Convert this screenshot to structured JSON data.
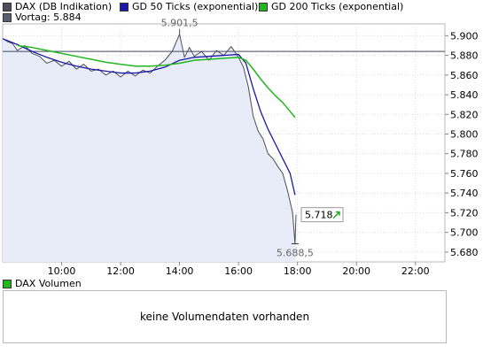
{
  "legend": {
    "items": [
      {
        "label": "DAX (DB Indikation)",
        "color": "#4a4e5a"
      },
      {
        "label": "GD 50 Ticks (exponential)",
        "color": "#1a1aa6"
      },
      {
        "label": "GD 200 Ticks (exponential)",
        "color": "#22b622"
      }
    ],
    "prev_close": {
      "label": "Vortag: 5.884",
      "color": "#5a6070"
    }
  },
  "volume": {
    "legend_label": "DAX Volumen",
    "legend_color": "#22b622",
    "empty_message": "keine Volumendaten vorhanden"
  },
  "chart_data": {
    "type": "line",
    "xlabel": "",
    "ylabel": "",
    "x_ticks": [
      "10:00",
      "12:00",
      "14:00",
      "16:00",
      "18:00",
      "20:00",
      "22:00"
    ],
    "y_ticks": [
      "5.680",
      "5.700",
      "5.720",
      "5.740",
      "5.760",
      "5.780",
      "5.800",
      "5.820",
      "5.840",
      "5.860",
      "5.880",
      "5.900"
    ],
    "ylim": [
      5670,
      5912
    ],
    "xlim": [
      "08:00",
      "23:00"
    ],
    "grid": true,
    "annotations": [
      {
        "text": "5.901,5",
        "time": "14:00",
        "value": 5901.5
      },
      {
        "text": "5.688,5",
        "time": "17:55",
        "value": 5688.5
      },
      {
        "text": "5.718",
        "time": "17:57",
        "value": 5718,
        "arrow": "up-right",
        "arrow_color": "#22aa22"
      }
    ],
    "reference_line": {
      "name": "Vortag",
      "value": 5884
    },
    "series": [
      {
        "name": "DAX (DB Indikation)",
        "color": "#4a4e5a",
        "x": [
          "08:00",
          "08:10",
          "08:20",
          "08:30",
          "08:45",
          "09:00",
          "09:15",
          "09:30",
          "09:45",
          "10:00",
          "10:15",
          "10:30",
          "10:45",
          "11:00",
          "11:15",
          "11:30",
          "11:45",
          "12:00",
          "12:15",
          "12:30",
          "12:45",
          "13:00",
          "13:15",
          "13:30",
          "13:45",
          "14:00",
          "14:10",
          "14:20",
          "14:30",
          "14:45",
          "15:00",
          "15:15",
          "15:30",
          "15:45",
          "16:00",
          "16:10",
          "16:20",
          "16:30",
          "16:40",
          "16:50",
          "17:00",
          "17:10",
          "17:20",
          "17:30",
          "17:40",
          "17:50",
          "17:55",
          "17:57"
        ],
        "values": [
          5897,
          5894,
          5892,
          5885,
          5890,
          5882,
          5879,
          5872,
          5875,
          5869,
          5874,
          5866,
          5871,
          5864,
          5866,
          5860,
          5864,
          5858,
          5864,
          5859,
          5865,
          5862,
          5869,
          5875,
          5884,
          5901.5,
          5878,
          5888,
          5879,
          5884,
          5875,
          5885,
          5880,
          5889,
          5878,
          5868,
          5848,
          5818,
          5803,
          5795,
          5780,
          5775,
          5767,
          5760,
          5742,
          5720,
          5688.5,
          5718
        ]
      },
      {
        "name": "GD 50 Ticks (exponential)",
        "color": "#1a1aa6",
        "x": [
          "08:00",
          "08:30",
          "09:00",
          "09:30",
          "10:00",
          "10:30",
          "11:00",
          "11:30",
          "12:00",
          "12:30",
          "13:00",
          "13:30",
          "14:00",
          "14:30",
          "15:00",
          "15:30",
          "16:00",
          "16:15",
          "16:30",
          "16:45",
          "17:00",
          "17:15",
          "17:30",
          "17:45",
          "17:55"
        ],
        "values": [
          5897,
          5891,
          5884,
          5878,
          5873,
          5869,
          5866,
          5864,
          5862,
          5862,
          5864,
          5868,
          5875,
          5878,
          5879,
          5880,
          5881,
          5872,
          5846,
          5823,
          5805,
          5790,
          5775,
          5760,
          5738
        ]
      },
      {
        "name": "GD 200 Ticks (exponential)",
        "color": "#22b622",
        "x": [
          "08:30",
          "09:00",
          "09:30",
          "10:00",
          "10:30",
          "11:00",
          "11:30",
          "12:00",
          "12:30",
          "13:00",
          "13:30",
          "14:00",
          "14:30",
          "15:00",
          "15:30",
          "16:00",
          "16:15",
          "16:30",
          "16:45",
          "17:00",
          "17:15",
          "17:30",
          "17:55"
        ],
        "values": [
          5890,
          5888,
          5885,
          5882,
          5879,
          5876,
          5873,
          5871,
          5869,
          5869,
          5870,
          5872,
          5875,
          5876,
          5877,
          5878,
          5875,
          5866,
          5856,
          5847,
          5839,
          5832,
          5817
        ]
      }
    ]
  }
}
